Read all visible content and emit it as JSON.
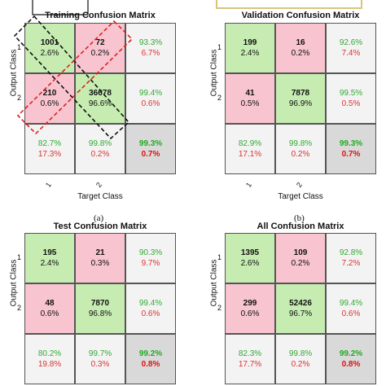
{
  "chart_data": [
    {
      "type": "table",
      "title": "Training Confusion Matrix",
      "xlabel": "Target Class",
      "ylabel": "Output Class",
      "class_labels": [
        "1",
        "2"
      ],
      "cells": [
        [
          {
            "count": "1001",
            "pct": "2.6%"
          },
          {
            "count": "72",
            "pct": "0.2%"
          },
          {
            "top": "93.3%",
            "bottom": "6.7%"
          }
        ],
        [
          {
            "count": "210",
            "pct": "0.6%"
          },
          {
            "count": "36678",
            "pct": "96.6%"
          },
          {
            "top": "99.4%",
            "bottom": "0.6%"
          }
        ],
        [
          {
            "top": "82.7%",
            "bottom": "17.3%"
          },
          {
            "top": "99.8%",
            "bottom": "0.2%"
          },
          {
            "top": "99.3%",
            "bottom": "0.7%"
          }
        ]
      ],
      "panel_label": "(a)"
    },
    {
      "type": "table",
      "title": "Validation Confusion Matrix",
      "xlabel": "Target Class",
      "ylabel": "Output Class",
      "class_labels": [
        "1",
        "2"
      ],
      "cells": [
        [
          {
            "count": "199",
            "pct": "2.4%"
          },
          {
            "count": "16",
            "pct": "0.2%"
          },
          {
            "top": "92.6%",
            "bottom": "7.4%"
          }
        ],
        [
          {
            "count": "41",
            "pct": "0.5%"
          },
          {
            "count": "7878",
            "pct": "96.9%"
          },
          {
            "top": "99.5%",
            "bottom": "0.5%"
          }
        ],
        [
          {
            "top": "82.9%",
            "bottom": "17.1%"
          },
          {
            "top": "99.8%",
            "bottom": "0.2%"
          },
          {
            "top": "99.3%",
            "bottom": "0.7%"
          }
        ]
      ],
      "panel_label": "(b)"
    },
    {
      "type": "table",
      "title": "Test Confusion Matrix",
      "xlabel": "",
      "ylabel": "Output Class",
      "class_labels": [
        "1",
        "2"
      ],
      "cells": [
        [
          {
            "count": "195",
            "pct": "2.4%"
          },
          {
            "count": "21",
            "pct": "0.3%"
          },
          {
            "top": "90.3%",
            "bottom": "9.7%"
          }
        ],
        [
          {
            "count": "48",
            "pct": "0.6%"
          },
          {
            "count": "7870",
            "pct": "96.8%"
          },
          {
            "top": "99.4%",
            "bottom": "0.6%"
          }
        ],
        [
          {
            "top": "80.2%",
            "bottom": "19.8%"
          },
          {
            "top": "99.7%",
            "bottom": "0.3%"
          },
          {
            "top": "99.2%",
            "bottom": "0.8%"
          }
        ]
      ],
      "panel_label": ""
    },
    {
      "type": "table",
      "title": "All Confusion Matrix",
      "xlabel": "",
      "ylabel": "Output Class",
      "class_labels": [
        "1",
        "2"
      ],
      "cells": [
        [
          {
            "count": "1395",
            "pct": "2.6%"
          },
          {
            "count": "109",
            "pct": "0.2%"
          },
          {
            "top": "92.8%",
            "bottom": "7.2%"
          }
        ],
        [
          {
            "count": "299",
            "pct": "0.6%"
          },
          {
            "count": "52426",
            "pct": "96.7%"
          },
          {
            "top": "99.4%",
            "bottom": "0.6%"
          }
        ],
        [
          {
            "top": "82.3%",
            "bottom": "17.7%"
          },
          {
            "top": "99.8%",
            "bottom": "0.2%"
          },
          {
            "top": "99.2%",
            "bottom": "0.8%"
          }
        ]
      ],
      "panel_label": ""
    }
  ],
  "colors": {
    "correct_fill": "#c6ecb2",
    "wrong_fill": "#f7c4cf",
    "summary_fill": "#f3f3f3",
    "total_fill": "#d9d9d9",
    "green_text": "#33aa33",
    "red_text": "#dd3333",
    "annotation_black": "#111111",
    "annotation_red": "#dd2222",
    "annotation_gold": "#d8c47a"
  }
}
